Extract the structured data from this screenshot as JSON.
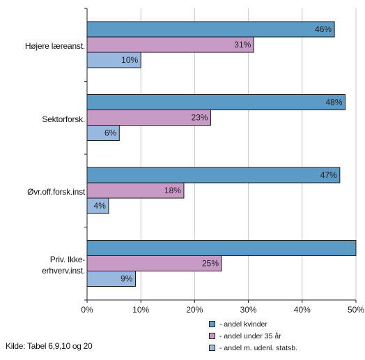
{
  "chart_data": {
    "type": "bar",
    "orientation": "horizontal",
    "categories": [
      "Højere læreanst.",
      "Sektorforsk.",
      "Øvr.off.forsk.inst",
      "Priv. Ikke-erhverv.inst."
    ],
    "category_lines": [
      [
        "Højere læreanst."
      ],
      [
        "Sektorforsk."
      ],
      [
        "Øvr.off.forsk.inst"
      ],
      [
        "Priv. Ikke-",
        "erhverv.inst."
      ]
    ],
    "series": [
      {
        "name": "- andel kvinder",
        "values": [
          46,
          48,
          47,
          50
        ],
        "labels": [
          "46%",
          "48%",
          "47%",
          ""
        ],
        "color": "#5b9bc6"
      },
      {
        "name": "- andel under 35 år",
        "values": [
          31,
          23,
          18,
          25
        ],
        "labels": [
          "31%",
          "23%",
          "18%",
          "25%"
        ],
        "color": "#c89ac6"
      },
      {
        "name": "- andel m. udenl. statsb.",
        "values": [
          10,
          6,
          4,
          9
        ],
        "labels": [
          "10%",
          "6%",
          "4%",
          "9%"
        ],
        "color": "#98b8e0"
      }
    ],
    "xlim": [
      0,
      50
    ],
    "xticks": [
      0,
      10,
      20,
      30,
      40,
      50
    ],
    "xtick_labels": [
      "0%",
      "10%",
      "20%",
      "30%",
      "40%",
      "50%"
    ],
    "grid": "vertical",
    "legend_position": "bottom-right",
    "source": "Kilde: Tabel 6,9,10 og 20"
  }
}
